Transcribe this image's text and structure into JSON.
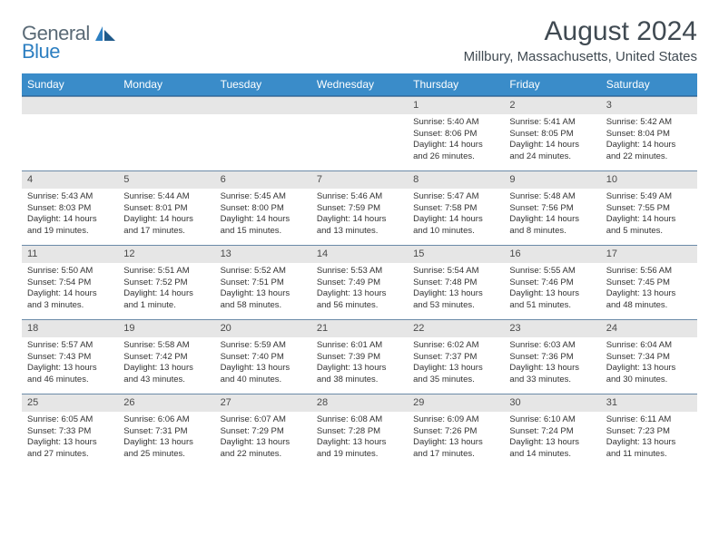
{
  "logo": {
    "text_general": "General",
    "text_blue": "Blue"
  },
  "header": {
    "month_title": "August 2024",
    "location": "Millbury, Massachusetts, United States"
  },
  "colors": {
    "header_bg": "#3a8cc9",
    "daynum_bg": "#e6e6e6",
    "border": "#6b8aa8",
    "logo_gray": "#5a6a76",
    "logo_blue": "#2d7fc1",
    "title": "#404a52"
  },
  "day_names": [
    "Sunday",
    "Monday",
    "Tuesday",
    "Wednesday",
    "Thursday",
    "Friday",
    "Saturday"
  ],
  "leading_blanks": 4,
  "days": [
    {
      "n": "1",
      "sunrise": "Sunrise: 5:40 AM",
      "sunset": "Sunset: 8:06 PM",
      "daylight": "Daylight: 14 hours and 26 minutes."
    },
    {
      "n": "2",
      "sunrise": "Sunrise: 5:41 AM",
      "sunset": "Sunset: 8:05 PM",
      "daylight": "Daylight: 14 hours and 24 minutes."
    },
    {
      "n": "3",
      "sunrise": "Sunrise: 5:42 AM",
      "sunset": "Sunset: 8:04 PM",
      "daylight": "Daylight: 14 hours and 22 minutes."
    },
    {
      "n": "4",
      "sunrise": "Sunrise: 5:43 AM",
      "sunset": "Sunset: 8:03 PM",
      "daylight": "Daylight: 14 hours and 19 minutes."
    },
    {
      "n": "5",
      "sunrise": "Sunrise: 5:44 AM",
      "sunset": "Sunset: 8:01 PM",
      "daylight": "Daylight: 14 hours and 17 minutes."
    },
    {
      "n": "6",
      "sunrise": "Sunrise: 5:45 AM",
      "sunset": "Sunset: 8:00 PM",
      "daylight": "Daylight: 14 hours and 15 minutes."
    },
    {
      "n": "7",
      "sunrise": "Sunrise: 5:46 AM",
      "sunset": "Sunset: 7:59 PM",
      "daylight": "Daylight: 14 hours and 13 minutes."
    },
    {
      "n": "8",
      "sunrise": "Sunrise: 5:47 AM",
      "sunset": "Sunset: 7:58 PM",
      "daylight": "Daylight: 14 hours and 10 minutes."
    },
    {
      "n": "9",
      "sunrise": "Sunrise: 5:48 AM",
      "sunset": "Sunset: 7:56 PM",
      "daylight": "Daylight: 14 hours and 8 minutes."
    },
    {
      "n": "10",
      "sunrise": "Sunrise: 5:49 AM",
      "sunset": "Sunset: 7:55 PM",
      "daylight": "Daylight: 14 hours and 5 minutes."
    },
    {
      "n": "11",
      "sunrise": "Sunrise: 5:50 AM",
      "sunset": "Sunset: 7:54 PM",
      "daylight": "Daylight: 14 hours and 3 minutes."
    },
    {
      "n": "12",
      "sunrise": "Sunrise: 5:51 AM",
      "sunset": "Sunset: 7:52 PM",
      "daylight": "Daylight: 14 hours and 1 minute."
    },
    {
      "n": "13",
      "sunrise": "Sunrise: 5:52 AM",
      "sunset": "Sunset: 7:51 PM",
      "daylight": "Daylight: 13 hours and 58 minutes."
    },
    {
      "n": "14",
      "sunrise": "Sunrise: 5:53 AM",
      "sunset": "Sunset: 7:49 PM",
      "daylight": "Daylight: 13 hours and 56 minutes."
    },
    {
      "n": "15",
      "sunrise": "Sunrise: 5:54 AM",
      "sunset": "Sunset: 7:48 PM",
      "daylight": "Daylight: 13 hours and 53 minutes."
    },
    {
      "n": "16",
      "sunrise": "Sunrise: 5:55 AM",
      "sunset": "Sunset: 7:46 PM",
      "daylight": "Daylight: 13 hours and 51 minutes."
    },
    {
      "n": "17",
      "sunrise": "Sunrise: 5:56 AM",
      "sunset": "Sunset: 7:45 PM",
      "daylight": "Daylight: 13 hours and 48 minutes."
    },
    {
      "n": "18",
      "sunrise": "Sunrise: 5:57 AM",
      "sunset": "Sunset: 7:43 PM",
      "daylight": "Daylight: 13 hours and 46 minutes."
    },
    {
      "n": "19",
      "sunrise": "Sunrise: 5:58 AM",
      "sunset": "Sunset: 7:42 PM",
      "daylight": "Daylight: 13 hours and 43 minutes."
    },
    {
      "n": "20",
      "sunrise": "Sunrise: 5:59 AM",
      "sunset": "Sunset: 7:40 PM",
      "daylight": "Daylight: 13 hours and 40 minutes."
    },
    {
      "n": "21",
      "sunrise": "Sunrise: 6:01 AM",
      "sunset": "Sunset: 7:39 PM",
      "daylight": "Daylight: 13 hours and 38 minutes."
    },
    {
      "n": "22",
      "sunrise": "Sunrise: 6:02 AM",
      "sunset": "Sunset: 7:37 PM",
      "daylight": "Daylight: 13 hours and 35 minutes."
    },
    {
      "n": "23",
      "sunrise": "Sunrise: 6:03 AM",
      "sunset": "Sunset: 7:36 PM",
      "daylight": "Daylight: 13 hours and 33 minutes."
    },
    {
      "n": "24",
      "sunrise": "Sunrise: 6:04 AM",
      "sunset": "Sunset: 7:34 PM",
      "daylight": "Daylight: 13 hours and 30 minutes."
    },
    {
      "n": "25",
      "sunrise": "Sunrise: 6:05 AM",
      "sunset": "Sunset: 7:33 PM",
      "daylight": "Daylight: 13 hours and 27 minutes."
    },
    {
      "n": "26",
      "sunrise": "Sunrise: 6:06 AM",
      "sunset": "Sunset: 7:31 PM",
      "daylight": "Daylight: 13 hours and 25 minutes."
    },
    {
      "n": "27",
      "sunrise": "Sunrise: 6:07 AM",
      "sunset": "Sunset: 7:29 PM",
      "daylight": "Daylight: 13 hours and 22 minutes."
    },
    {
      "n": "28",
      "sunrise": "Sunrise: 6:08 AM",
      "sunset": "Sunset: 7:28 PM",
      "daylight": "Daylight: 13 hours and 19 minutes."
    },
    {
      "n": "29",
      "sunrise": "Sunrise: 6:09 AM",
      "sunset": "Sunset: 7:26 PM",
      "daylight": "Daylight: 13 hours and 17 minutes."
    },
    {
      "n": "30",
      "sunrise": "Sunrise: 6:10 AM",
      "sunset": "Sunset: 7:24 PM",
      "daylight": "Daylight: 13 hours and 14 minutes."
    },
    {
      "n": "31",
      "sunrise": "Sunrise: 6:11 AM",
      "sunset": "Sunset: 7:23 PM",
      "daylight": "Daylight: 13 hours and 11 minutes."
    }
  ]
}
